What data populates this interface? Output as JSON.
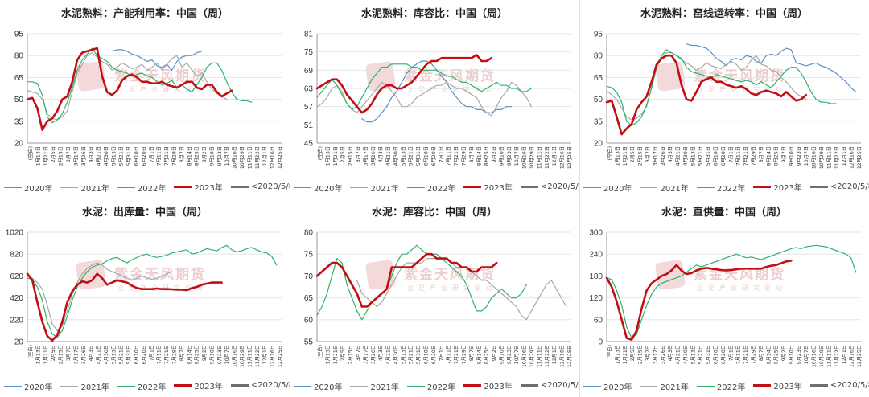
{
  "colors": {
    "2020": "#5b8fc9",
    "2021": "#a8a8a8",
    "2022": "#2db36b",
    "2023": "#c01016",
    "lt2020": "#6e6e6e",
    "grid": "#e6e6e6",
    "axis": "#999999",
    "text": "#333333"
  },
  "watermark": {
    "main": "紫金天风期货",
    "sub": "立足产业研究驱动"
  },
  "legend_labels": [
    "2020年",
    "2021年",
    "2022年",
    "2023年",
    "<2020/5/8"
  ],
  "x_tick_labels": [
    "(空白)",
    "1月13日",
    "1月21日",
    "2月5日",
    "2月15日",
    "3月7日",
    "3月17日",
    "3月26日",
    "4月3日",
    "4月21日",
    "4月30日",
    "5月13日",
    "5月21日",
    "5月31日",
    "6月10日",
    "6月20日",
    "7月1日",
    "7月11日",
    "7月21日",
    "7月29日",
    "8月7日",
    "8月14日",
    "8月25日",
    "9月2日",
    "9月10日",
    "9月23日",
    "10月7日",
    "10月16日",
    "10月29日",
    "11月11日",
    "11月22日",
    "12月1日",
    "12月16日",
    "12月25日"
  ],
  "chart_data": [
    {
      "type": "line",
      "title": "水泥熟料：产能利用率：中国（周）",
      "ylim": [
        20,
        95
      ],
      "yticks": [
        20,
        35,
        50,
        65,
        80,
        95
      ],
      "series": [
        {
          "name": "2020年",
          "key": "2020",
          "x_start": 17,
          "values": [
            83,
            84,
            84,
            83,
            81,
            80,
            78,
            76,
            77,
            73,
            72,
            74,
            70,
            76,
            79,
            80,
            80,
            82,
            83
          ]
        },
        {
          "name": "2021年",
          "key": "2021",
          "x_start": 0,
          "values": [
            56,
            55,
            54,
            50,
            40,
            37,
            36,
            38,
            42,
            55,
            68,
            74,
            80,
            82,
            79,
            76,
            74,
            70,
            72,
            75,
            73,
            71,
            72,
            74,
            70,
            72,
            75,
            70,
            74,
            78,
            80,
            72,
            75,
            70,
            66,
            68,
            62,
            57,
            54,
            52,
            50
          ]
        },
        {
          "name": "2022年",
          "key": "2022",
          "x_start": 0,
          "values": [
            62,
            62,
            61,
            53,
            38,
            34,
            36,
            40,
            48,
            58,
            70,
            77,
            81,
            85,
            80,
            78,
            76,
            72,
            70,
            69,
            68,
            66,
            67,
            68,
            66,
            65,
            62,
            60,
            61,
            63,
            58,
            60,
            57,
            55,
            60,
            65,
            72,
            75,
            75,
            70,
            62,
            55,
            50,
            49,
            49,
            48
          ]
        },
        {
          "name": "2023年",
          "key": "2023",
          "values": [
            50,
            51,
            44,
            29,
            35,
            37,
            42,
            50,
            52,
            62,
            77,
            82,
            83,
            84,
            85,
            66,
            55,
            53,
            56,
            63,
            66,
            67,
            65,
            62,
            62,
            61,
            61,
            62,
            60,
            59,
            58,
            60,
            62,
            62,
            58,
            57,
            60,
            60,
            55,
            52,
            54,
            56
          ]
        },
        {
          "name": "<2020/5/8",
          "key": "lt2020",
          "x_start": 0,
          "values": []
        }
      ]
    },
    {
      "type": "line",
      "title": "水泥熟料：库容比：中国（周）",
      "ylim": [
        45,
        81
      ],
      "yticks": [
        45,
        51,
        57,
        63,
        69,
        75,
        81
      ],
      "series": [
        {
          "name": "2020年",
          "key": "2020",
          "x_start": 9,
          "values": [
            53,
            52,
            52,
            53,
            55,
            57,
            60,
            62,
            65,
            68,
            70,
            71,
            72,
            72,
            71,
            69,
            67,
            65,
            62,
            60,
            58,
            57,
            57,
            56,
            56,
            55,
            55,
            56,
            56,
            57,
            57
          ]
        },
        {
          "name": "2021年",
          "key": "2021",
          "x_start": 0,
          "values": [
            57,
            58,
            60,
            63,
            64,
            62,
            58,
            56,
            55,
            57,
            59,
            61,
            63,
            65,
            64,
            62,
            60,
            57,
            57,
            58,
            60,
            61,
            62,
            63,
            64,
            64,
            65,
            64,
            63,
            63,
            62,
            61,
            60,
            57,
            55,
            54,
            57,
            60,
            62,
            65,
            64,
            62,
            60,
            57
          ]
        },
        {
          "name": "2022年",
          "key": "2022",
          "x_start": 0,
          "values": [
            60,
            62,
            64,
            66,
            64,
            61,
            58,
            56,
            57,
            60,
            63,
            66,
            68,
            70,
            70,
            71,
            71,
            71,
            71,
            70,
            70,
            69,
            69,
            69,
            69,
            68,
            67,
            67,
            66,
            65,
            65,
            64,
            63,
            62,
            63,
            64,
            65,
            64,
            64,
            63,
            63,
            62,
            62,
            63
          ]
        },
        {
          "name": "2023年",
          "key": "2023",
          "values": [
            63,
            64,
            65,
            66,
            66,
            64,
            61,
            59,
            57,
            55,
            56,
            58,
            61,
            63,
            64,
            64,
            63,
            63,
            64,
            65,
            67,
            69,
            71,
            72,
            72,
            73,
            73,
            73,
            73,
            73,
            73,
            73,
            74,
            72,
            72,
            73
          ]
        },
        {
          "name": "<2020/5/8",
          "key": "lt2020",
          "x_start": 0,
          "values": []
        }
      ]
    },
    {
      "type": "line",
      "title": "水泥熟料：窑线运转率：中国（周）",
      "ylim": [
        20,
        95
      ],
      "yticks": [
        20,
        35,
        50,
        65,
        80,
        95
      ],
      "series": [
        {
          "name": "2020年",
          "key": "2020",
          "x_start": 16,
          "values": [
            88,
            87,
            87,
            86,
            85,
            82,
            78,
            76,
            73,
            77,
            78,
            77,
            80,
            79,
            76,
            75,
            80,
            81,
            80,
            83,
            85,
            84,
            75,
            74,
            73,
            74,
            75,
            73,
            72,
            70,
            68,
            65,
            62,
            58,
            55
          ]
        },
        {
          "name": "2021年",
          "key": "2021",
          "x_start": 0,
          "values": [
            56,
            53,
            50,
            44,
            38,
            36,
            37,
            40,
            45,
            58,
            72,
            78,
            82,
            82,
            80,
            77,
            75,
            73,
            70,
            72,
            75,
            73,
            72,
            71,
            74,
            76,
            74,
            70,
            72,
            77,
            80,
            74,
            73,
            70,
            69,
            65,
            62,
            58,
            54,
            52,
            50
          ]
        },
        {
          "name": "2022年",
          "key": "2022",
          "x_start": 0,
          "values": [
            59,
            58,
            55,
            48,
            35,
            32,
            34,
            38,
            46,
            58,
            72,
            80,
            84,
            82,
            80,
            78,
            72,
            69,
            68,
            67,
            66,
            65,
            67,
            66,
            65,
            64,
            63,
            62,
            63,
            62,
            60,
            62,
            60,
            58,
            62,
            66,
            70,
            72,
            72,
            68,
            62,
            55,
            50,
            48,
            48,
            47,
            47
          ]
        },
        {
          "name": "2023年",
          "key": "2023",
          "values": [
            48,
            49,
            38,
            26,
            30,
            33,
            43,
            48,
            52,
            62,
            74,
            78,
            80,
            80,
            75,
            60,
            50,
            49,
            55,
            62,
            64,
            65,
            62,
            62,
            60,
            59,
            58,
            59,
            57,
            54,
            53,
            55,
            56,
            55,
            54,
            52,
            55,
            52,
            49,
            50,
            53
          ]
        },
        {
          "name": "<2020/5/8",
          "key": "lt2020",
          "x_start": 0,
          "values": []
        }
      ]
    },
    {
      "type": "line",
      "title": "水泥：出库量：中国（周）",
      "ylim": [
        20,
        1020
      ],
      "yticks": [
        20,
        220,
        420,
        620,
        820,
        1020
      ],
      "series": [
        {
          "name": "2020年",
          "key": "2020",
          "x_start": 0,
          "values": []
        },
        {
          "name": "2021年",
          "key": "2021",
          "x_start": 0,
          "values": [
            620,
            600,
            560,
            500,
            350,
            180,
            120,
            160,
            300,
            450,
            560,
            640,
            690,
            720,
            740,
            720,
            680,
            660,
            640,
            620,
            600,
            580,
            600,
            620,
            600,
            590,
            600,
            620,
            640,
            660
          ]
        },
        {
          "name": "2022年",
          "key": "2022",
          "x_start": 0,
          "values": [
            600,
            590,
            520,
            400,
            200,
            90,
            60,
            120,
            250,
            400,
            520,
            600,
            660,
            700,
            720,
            730,
            760,
            780,
            790,
            760,
            740,
            770,
            790,
            810,
            820,
            800,
            790,
            800,
            810,
            830,
            840,
            850,
            860,
            820,
            830,
            850,
            870,
            860,
            850,
            880,
            900,
            860,
            840,
            850,
            870,
            880,
            860,
            840,
            830,
            800,
            720
          ]
        },
        {
          "name": "2023年",
          "key": "2023",
          "values": [
            640,
            580,
            380,
            200,
            70,
            30,
            80,
            200,
            380,
            480,
            540,
            570,
            560,
            580,
            640,
            600,
            540,
            560,
            580,
            570,
            560,
            530,
            510,
            500,
            500,
            500,
            505,
            500,
            500,
            498,
            495,
            495,
            490,
            510,
            520,
            540,
            550,
            560,
            560,
            560
          ]
        },
        {
          "name": "<2020/5/8",
          "key": "lt2020",
          "x_start": 0,
          "values": []
        }
      ]
    },
    {
      "type": "line",
      "title": "水泥：库容比：中国（周）",
      "ylim": [
        55,
        80
      ],
      "yticks": [
        55,
        60,
        65,
        70,
        75,
        80
      ],
      "series": [
        {
          "name": "2020年",
          "key": "2020",
          "x_start": 0,
          "values": []
        },
        {
          "name": "2021年",
          "key": "2021",
          "x_start": 8,
          "values": [
            69,
            66,
            65,
            64,
            63,
            64,
            66,
            68,
            70,
            72,
            73,
            73,
            73,
            73,
            74,
            74,
            74,
            74,
            74,
            73,
            72,
            72,
            72,
            71,
            70,
            69,
            69,
            68,
            67,
            66,
            65,
            64,
            63,
            61,
            60,
            62,
            64,
            66,
            68,
            69,
            67,
            65,
            63
          ]
        },
        {
          "name": "2022年",
          "key": "2022",
          "x_start": 0,
          "values": [
            61,
            63,
            66,
            70,
            74,
            73,
            68,
            65,
            62,
            60,
            62,
            64,
            65,
            66,
            67,
            70,
            73,
            75,
            75,
            76,
            77,
            76,
            75,
            75,
            75,
            74,
            73,
            72,
            71,
            70,
            68,
            65,
            62,
            62,
            63,
            65,
            66,
            67,
            66,
            65,
            65,
            66,
            68
          ]
        },
        {
          "name": "2023年",
          "key": "2023",
          "values": [
            70,
            71,
            72,
            73,
            73,
            72,
            70,
            68,
            66,
            63,
            63,
            64,
            65,
            66,
            67,
            72,
            72,
            72,
            72,
            72,
            73,
            74,
            75,
            75,
            74,
            74,
            74,
            73,
            73,
            72,
            72,
            71,
            71,
            72,
            72,
            72,
            73
          ]
        },
        {
          "name": "<2020/5/8",
          "key": "lt2020",
          "x_start": 0,
          "values": []
        }
      ]
    },
    {
      "type": "line",
      "title": "水泥：直供量：中国（周）",
      "ylim": [
        0,
        300
      ],
      "yticks": [
        0,
        60,
        120,
        180,
        240,
        300
      ],
      "series": [
        {
          "name": "2020年",
          "key": "2020",
          "x_start": 0,
          "values": []
        },
        {
          "name": "2021年",
          "key": "2021",
          "x_start": 0,
          "values": []
        },
        {
          "name": "2022年",
          "key": "2022",
          "x_start": 0,
          "values": [
            175,
            170,
            140,
            100,
            40,
            10,
            20,
            60,
            100,
            130,
            150,
            160,
            165,
            170,
            175,
            180,
            190,
            200,
            210,
            205,
            210,
            215,
            220,
            225,
            230,
            235,
            240,
            235,
            230,
            232,
            228,
            225,
            230,
            235,
            240,
            245,
            250,
            255,
            258,
            255,
            260,
            262,
            264,
            262,
            260,
            255,
            250,
            245,
            240,
            230,
            190
          ]
        },
        {
          "name": "2023年",
          "key": "2023",
          "values": [
            175,
            150,
            110,
            60,
            10,
            5,
            30,
            90,
            140,
            160,
            170,
            180,
            185,
            195,
            210,
            195,
            185,
            188,
            195,
            200,
            202,
            200,
            198,
            196,
            195,
            196,
            198,
            200,
            200,
            200,
            200,
            200,
            205,
            208,
            210,
            215,
            220,
            222
          ]
        },
        {
          "name": "<2020/5/8",
          "key": "lt2020",
          "x_start": 0,
          "values": []
        }
      ]
    }
  ]
}
